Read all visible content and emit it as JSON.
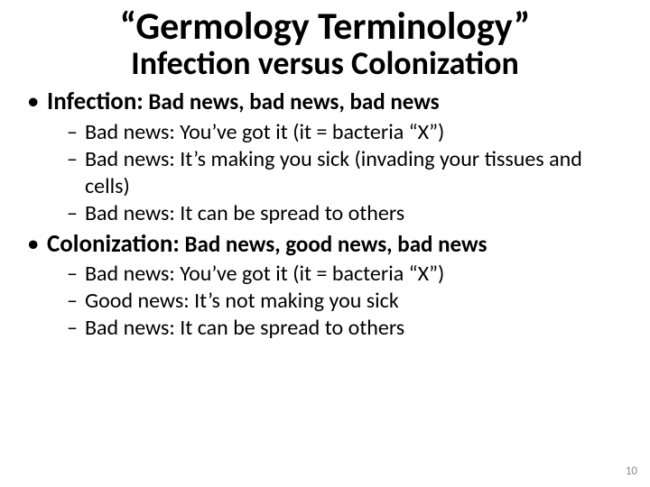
{
  "title": {
    "line1": "“Germology Terminology”",
    "line2": "Infection versus Colonization"
  },
  "bullets": [
    {
      "lead": "Infection:",
      "tail": " Bad news, bad news, bad news",
      "sub": [
        "Bad news: You’ve got it (it = bacteria “X”)",
        "Bad news: It’s making you sick (invading your tissues and cells)",
        "Bad news: It can be spread to others"
      ]
    },
    {
      "lead": "Colonization:",
      "tail": " Bad news, good news, bad news",
      "sub": [
        "Bad news: You’ve got it (it = bacteria “X”)",
        "Good news: It’s not making you sick",
        "Bad news: It can be spread to others"
      ]
    }
  ],
  "page_number": "10",
  "style": {
    "background_color": "#ffffff",
    "text_color": "#000000",
    "pagenum_color": "#8b8b8b",
    "font_family": "Calibri",
    "title_line1_fontsize": 42,
    "title_line2_fontsize": 36,
    "lvl1_fontsize": 27,
    "lvl1_tail_fontsize": 25,
    "lvl2_fontsize": 24,
    "pagenum_fontsize": 13,
    "slide_width": 720,
    "slide_height": 540
  }
}
